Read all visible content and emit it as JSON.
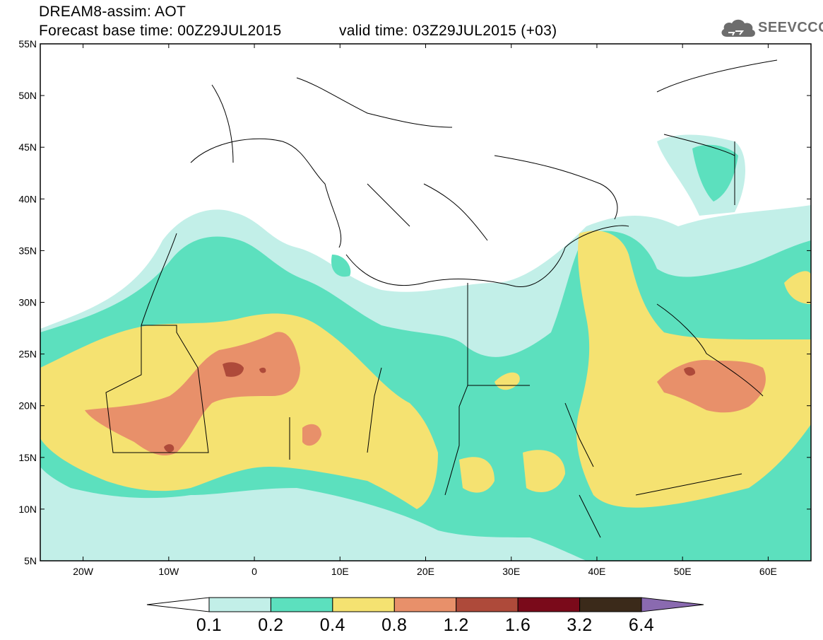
{
  "header": {
    "title_line1": "DREAM8-assim: AOT",
    "title_line2": "Forecast base time: 00Z29JUL2015",
    "valid_time": "valid time: 03Z29JUL2015 (+03)",
    "logo_text": "SEEVCCC",
    "logo_icon": "cloud-icon"
  },
  "map": {
    "lat_ticks": [
      "55N",
      "50N",
      "45N",
      "40N",
      "35N",
      "30N",
      "25N",
      "20N",
      "15N",
      "10N",
      "5N"
    ],
    "lon_ticks": [
      "20W",
      "10W",
      "0",
      "10E",
      "20E",
      "30E",
      "40E",
      "50E",
      "60E"
    ],
    "lon_range": [
      -25,
      65
    ],
    "lat_range": [
      5,
      55
    ]
  },
  "colorbar": {
    "labels": [
      "0.1",
      "0.2",
      "0.4",
      "0.8",
      "1.2",
      "1.6",
      "3.2",
      "6.4"
    ],
    "colors": [
      "#ffffff",
      "#c2efe8",
      "#5ce0be",
      "#f5e271",
      "#e8906a",
      "#ae4a3a",
      "#7a0a1a",
      "#3b2a1a",
      "#8a6ab0"
    ]
  }
}
